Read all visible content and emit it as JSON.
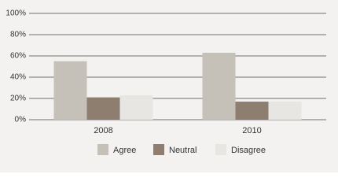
{
  "chart_data": {
    "type": "bar",
    "categories": [
      "2008",
      "2010"
    ],
    "series": [
      {
        "name": "Agree",
        "color": "#c5c0b8",
        "values": [
          55,
          63
        ]
      },
      {
        "name": "Neutral",
        "color": "#8d7e6f",
        "values": [
          21,
          17
        ]
      },
      {
        "name": "Disagree",
        "color": "#e8e6e2",
        "values": [
          23,
          17
        ]
      }
    ],
    "ylim": [
      0,
      100
    ],
    "yticks": [
      {
        "value": 0,
        "label": "0%"
      },
      {
        "value": 20,
        "label": "20%"
      },
      {
        "value": 40,
        "label": "40%"
      },
      {
        "value": 60,
        "label": "60%"
      },
      {
        "value": 80,
        "label": "80%"
      },
      {
        "value": 100,
        "label": "100%"
      }
    ],
    "grid": true
  }
}
